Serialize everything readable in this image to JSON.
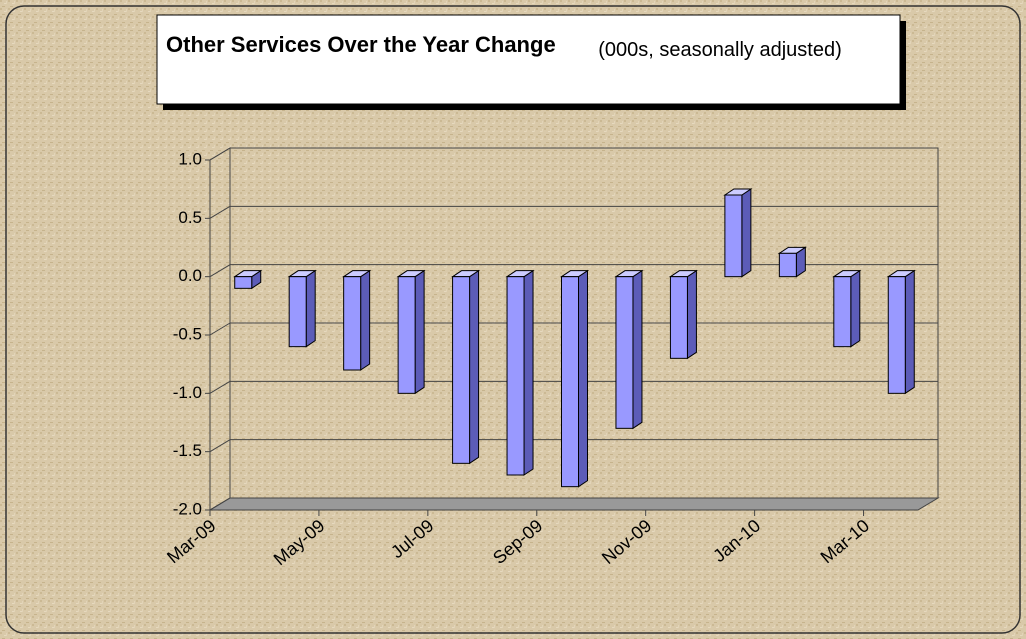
{
  "chart_data": {
    "type": "bar",
    "title": "Other Services Over the Year Change",
    "subtitle": "(000s, seasonally adjusted)",
    "categories": [
      "Mar-09",
      null,
      "May-09",
      null,
      "Jul-09",
      null,
      "Sep-09",
      null,
      "Nov-09",
      null,
      "Jan-10",
      null,
      "Mar-10"
    ],
    "values": [
      -0.1,
      -0.6,
      -0.8,
      -1.0,
      -1.6,
      -1.7,
      -1.8,
      -1.3,
      -0.7,
      0.7,
      0.2,
      -0.6,
      -1.0
    ],
    "color": "#9999ff",
    "ylim": [
      -2,
      1
    ],
    "yticks": [
      {
        "value": -2,
        "label": "-2.0"
      },
      -1.5,
      {
        "value": -1,
        "label": "-1.0"
      },
      -0.5,
      {
        "value": 0,
        "label": "0.0"
      },
      0.5,
      {
        "value": 1,
        "label": "1.0"
      }
    ],
    "grid": true
  }
}
